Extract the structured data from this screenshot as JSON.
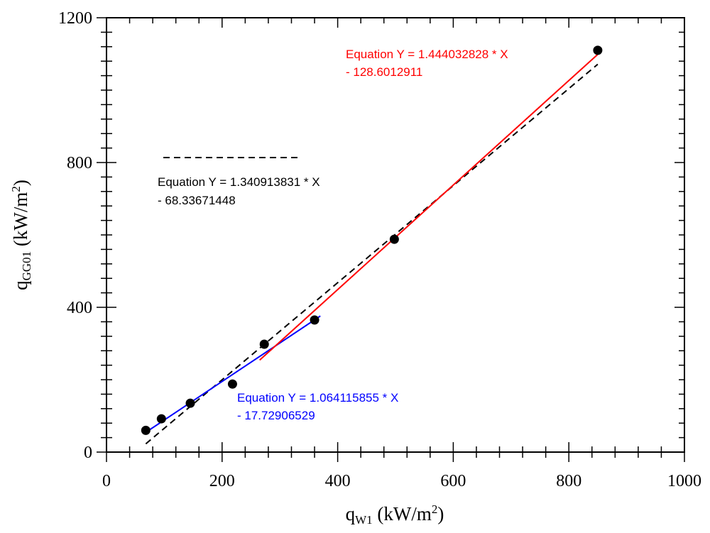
{
  "chart_data": {
    "type": "scatter",
    "xlim": [
      0,
      1000
    ],
    "ylim": [
      0,
      1200
    ],
    "x_ticks": [
      "0",
      "200",
      "400",
      "600",
      "800",
      "1000"
    ],
    "y_ticks": [
      "0",
      "400",
      "800",
      "1200"
    ],
    "xlabel": {
      "main": "q",
      "sub": "W1",
      "units_pre": " (kW/m",
      "sup": "2",
      "units_post": ")"
    },
    "ylabel": {
      "main": "q",
      "sub": "GG01",
      "units_pre": " (kW/m",
      "sup": "2",
      "units_post": ")"
    },
    "points": [
      {
        "x": 68,
        "y": 60
      },
      {
        "x": 95,
        "y": 92
      },
      {
        "x": 145,
        "y": 135
      },
      {
        "x": 218,
        "y": 188
      },
      {
        "x": 273,
        "y": 298
      },
      {
        "x": 360,
        "y": 365
      },
      {
        "x": 498,
        "y": 588
      },
      {
        "x": 850,
        "y": 1110
      }
    ],
    "fits": [
      {
        "name": "overall",
        "color": "#000000",
        "dashed": true,
        "slope": 1.340913831,
        "intercept": -68.33671448,
        "x_range": [
          68,
          850
        ],
        "eq_line1": "Equation Y = 1.340913831 * X",
        "eq_line2": "- 68.33671448"
      },
      {
        "name": "low",
        "color": "#0000ff",
        "dashed": false,
        "slope": 1.064115855,
        "intercept": -17.72906529,
        "x_range": [
          68,
          370
        ],
        "eq_line1": "Equation Y = 1.064115855 * X",
        "eq_line2": "- 17.72906529"
      },
      {
        "name": "high",
        "color": "#ff0000",
        "dashed": false,
        "slope": 1.444032828,
        "intercept": -128.6012911,
        "x_range": [
          265,
          850
        ],
        "eq_line1": "Equation Y = 1.444032828 * X",
        "eq_line2": "- 128.6012911"
      }
    ]
  }
}
